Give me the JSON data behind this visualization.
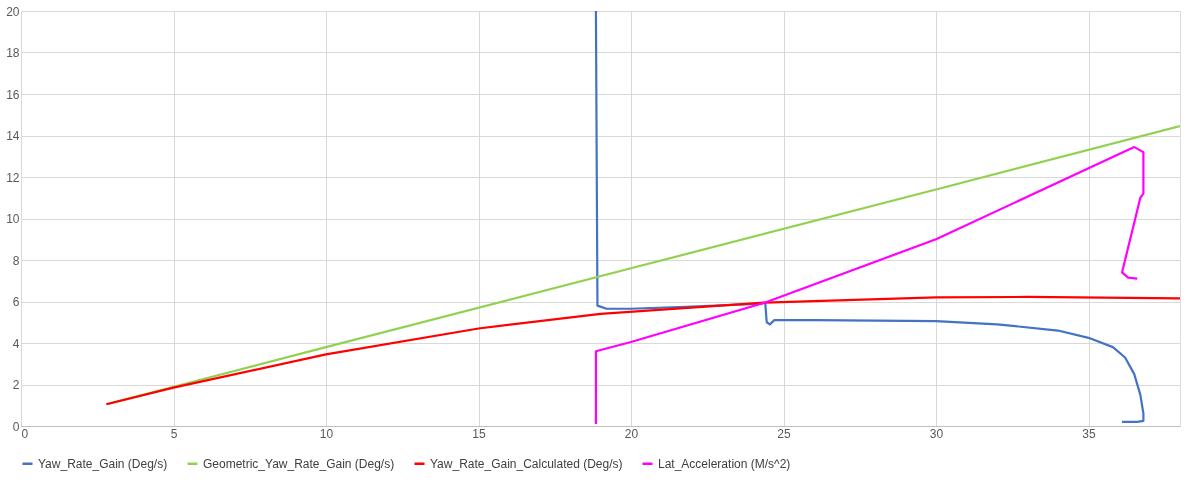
{
  "chart_data": {
    "type": "line",
    "xlim": [
      0,
      38
    ],
    "xticks": [
      0,
      5,
      10,
      15,
      20,
      25,
      30,
      35
    ],
    "ylim": [
      0,
      20
    ],
    "yticks": [
      0,
      2,
      4,
      6,
      8,
      10,
      12,
      14,
      16,
      18,
      20
    ],
    "grid": true,
    "legend": "bottom",
    "marker": "none",
    "line_style": "solid",
    "series": [
      {
        "name": "Yaw_Rate_Gain (Deg/s)",
        "color": "#4472c4",
        "x": [
          18.85,
          18.9,
          19.2,
          20,
          22,
          24.3,
          24.4,
          24.45,
          24.55,
          24.7,
          26,
          30,
          32,
          34,
          35,
          35.8,
          36.2,
          36.5,
          36.7,
          36.8,
          36.8,
          36.6,
          36.1
        ],
        "values": [
          20,
          5.8,
          5.65,
          5.65,
          5.75,
          5.9,
          5.95,
          5.0,
          4.9,
          5.1,
          5.1,
          5.05,
          4.9,
          4.6,
          4.25,
          3.8,
          3.3,
          2.5,
          1.5,
          0.6,
          0.25,
          0.2,
          0.2
        ]
      },
      {
        "name": "Geometric_Yaw_Rate_Gain (Deg/s)",
        "color": "#92d050",
        "x": [
          2.8,
          10,
          20,
          30,
          38
        ],
        "values": [
          1.05,
          3.8,
          7.6,
          11.4,
          14.45
        ]
      },
      {
        "name": "Yaw_Rate_Gain_Calculated (Deg/s)",
        "color": "#ff0000",
        "x": [
          2.8,
          5,
          10,
          15,
          19,
          24.4,
          30,
          33,
          38
        ],
        "values": [
          1.05,
          1.85,
          3.45,
          4.7,
          5.4,
          5.95,
          6.2,
          6.22,
          6.15
        ]
      },
      {
        "name": "Lat_Acceleration (M/s^2)",
        "color": "#ff00ff",
        "x": [
          18.85,
          18.85,
          20,
          24.4,
          30,
          36.5,
          36.8,
          36.8,
          36.7,
          36.2,
          36.1,
          36.3,
          36.6
        ],
        "values": [
          0.1,
          3.6,
          4.05,
          5.95,
          9.0,
          13.44,
          13.2,
          11.2,
          11.0,
          8.0,
          7.4,
          7.15,
          7.1
        ]
      }
    ]
  }
}
